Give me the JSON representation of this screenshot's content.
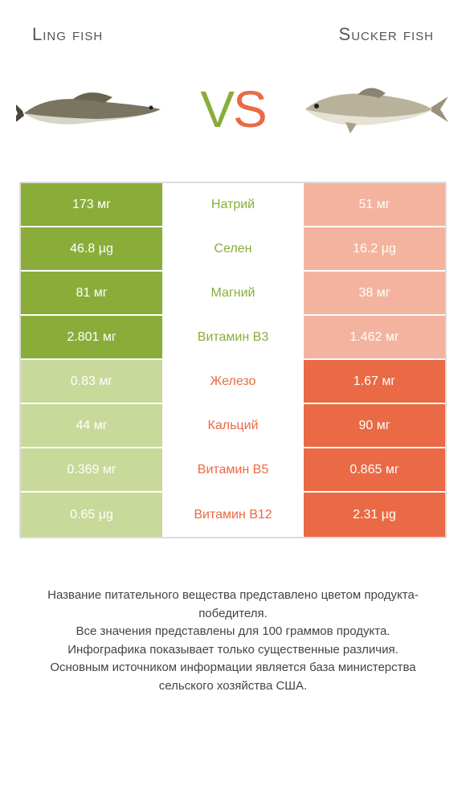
{
  "colors": {
    "left_win": "#8aad3a",
    "left_lose": "#c8d99a",
    "right_win": "#e96a44",
    "right_lose": "#f4b39e",
    "mid_text_left": "#8aad3a",
    "mid_text_right": "#e96a44",
    "border": "#dddddd",
    "bg": "#ffffff"
  },
  "titles": {
    "left": "Ling fish",
    "right": "Sucker fish"
  },
  "vs": {
    "v": "V",
    "s": "S"
  },
  "rows": [
    {
      "name": "Натрий",
      "left": "173 мг",
      "right": "51 мг",
      "winner": "left"
    },
    {
      "name": "Селен",
      "left": "46.8 µg",
      "right": "16.2 µg",
      "winner": "left"
    },
    {
      "name": "Магний",
      "left": "81 мг",
      "right": "38 мг",
      "winner": "left"
    },
    {
      "name": "Витамин B3",
      "left": "2.801 мг",
      "right": "1.462 мг",
      "winner": "left"
    },
    {
      "name": "Железо",
      "left": "0.83 мг",
      "right": "1.67 мг",
      "winner": "right"
    },
    {
      "name": "Кальций",
      "left": "44 мг",
      "right": "90 мг",
      "winner": "right"
    },
    {
      "name": "Витамин B5",
      "left": "0.369 мг",
      "right": "0.865 мг",
      "winner": "right"
    },
    {
      "name": "Витамин B12",
      "left": "0.65 µg",
      "right": "2.31 µg",
      "winner": "right"
    }
  ],
  "footer": [
    "Название питательного вещества представлено цветом продукта-победителя.",
    "Все значения представлены для 100 граммов продукта.",
    "Инфографика показывает только существенные различия.",
    "Основным источником информации является база министерства сельского хозяйства США."
  ]
}
